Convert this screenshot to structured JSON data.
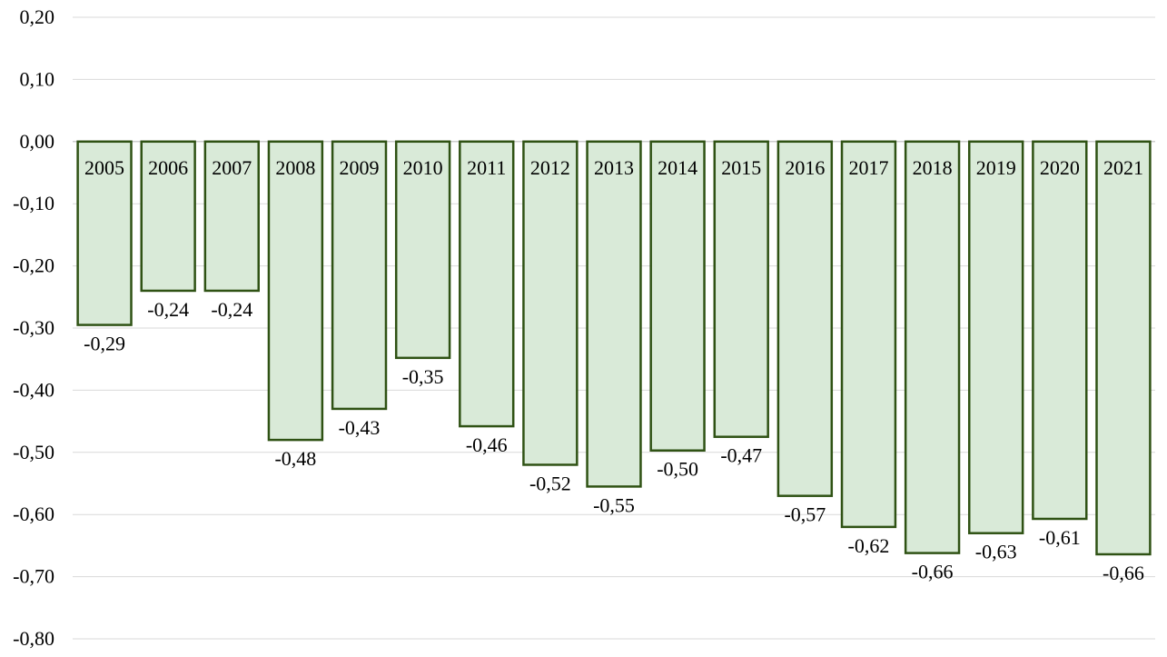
{
  "chart_data": {
    "type": "bar",
    "categories": [
      "2005",
      "2006",
      "2007",
      "2008",
      "2009",
      "2010",
      "2011",
      "2012",
      "2013",
      "2014",
      "2015",
      "2016",
      "2017",
      "2018",
      "2019",
      "2020",
      "2021"
    ],
    "values": [
      -0.295,
      -0.24,
      -0.24,
      -0.48,
      -0.43,
      -0.348,
      -0.458,
      -0.52,
      -0.555,
      -0.497,
      -0.475,
      -0.57,
      -0.62,
      -0.662,
      -0.63,
      -0.607,
      -0.664
    ],
    "data_labels": [
      "-0,29",
      "-0,24",
      "-0,24",
      "-0,48",
      "-0,43",
      "-0,35",
      "-0,46",
      "-0,52",
      "-0,55",
      "-0,50",
      "-0,47",
      "-0,57",
      "-0,62",
      "-0,66",
      "-0,63",
      "-0,61",
      "-0,66"
    ],
    "ylim": [
      -0.8,
      0.2
    ],
    "y_ticks": [
      0.2,
      0.1,
      0.0,
      -0.1,
      -0.2,
      -0.3,
      -0.4,
      -0.5,
      -0.6,
      -0.7,
      -0.8
    ],
    "y_tick_labels": [
      "0,20",
      "0,10",
      "0,00",
      "-0,10",
      "-0,20",
      "-0,30",
      "-0,40",
      "-0,50",
      "-0,60",
      "-0,70",
      "-0,80"
    ],
    "grid": true,
    "legend": "none",
    "colors": {
      "bar_fill": "#d9ead8",
      "bar_stroke": "#2f5214",
      "grid": "#d9d9d9"
    }
  }
}
